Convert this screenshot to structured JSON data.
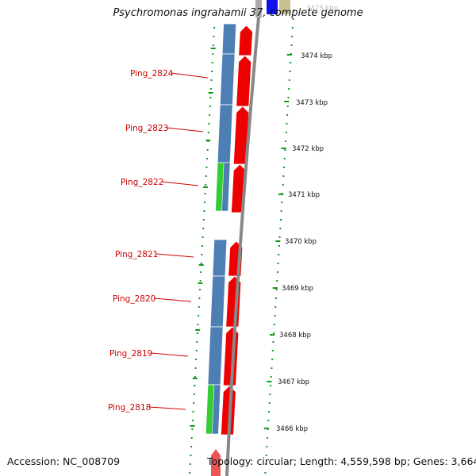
{
  "header": {
    "title": "Psychromonas ingrahamii 37, complete genome"
  },
  "footer": {
    "accession": "Accession: NC_008709",
    "topology": "Topology: circular; Length: 4,559,598 bp; Genes: 3,664"
  },
  "gene_labels": [
    "Ping_2824",
    "Ping_2823",
    "Ping_2822",
    "Ping_2821",
    "Ping_2820",
    "Ping_2819",
    "Ping_2818"
  ],
  "scale_labels": [
    "3475 kbp",
    "3474 kbp",
    "3473 kbp",
    "3472 kbp",
    "3471 kbp",
    "3470 kbp",
    "3469 kbp",
    "3468 kbp",
    "3467 kbp",
    "3466 kbp"
  ],
  "colors": {
    "label_red": "#cc0000",
    "cds_blue": "#4d7fb5",
    "cds_green": "#33cc33",
    "arrow_red": "#ee0000",
    "backbone": "#888888",
    "dots_green": "#119911",
    "top_blue": "#1111ee",
    "top_tan": "#c8c090"
  }
}
